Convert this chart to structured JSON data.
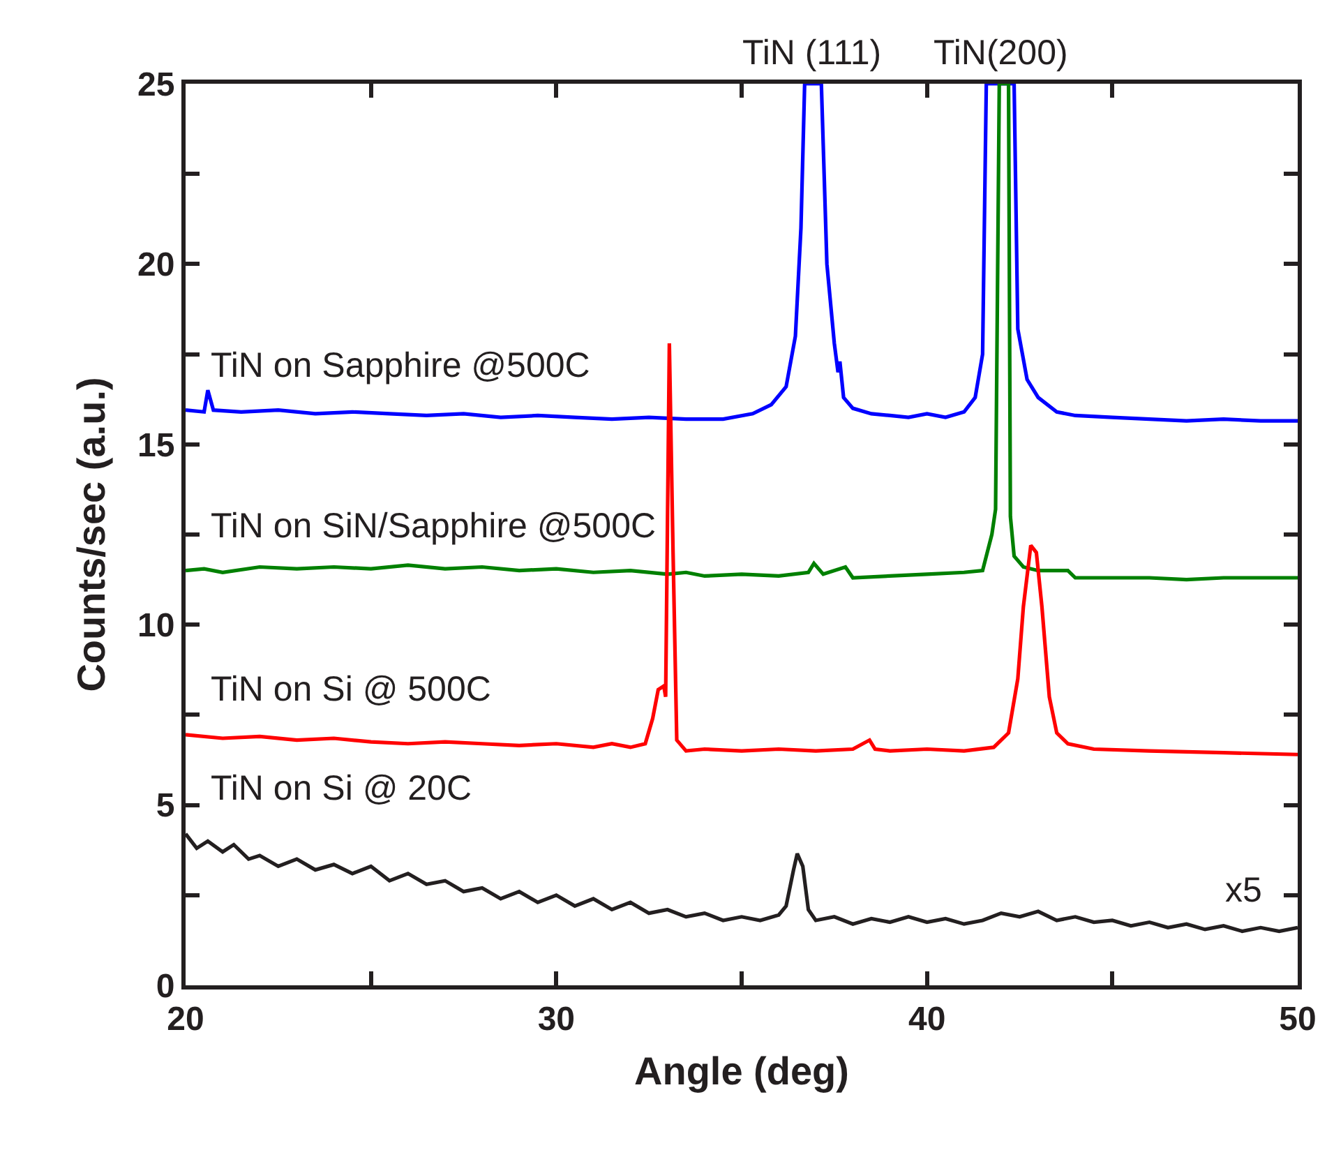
{
  "chart_data": {
    "type": "line",
    "xlabel": "Angle (deg)",
    "ylabel": "Counts/sec (a.u.)",
    "xlim": [
      20,
      50
    ],
    "ylim": [
      0,
      25
    ],
    "xticks": [
      20,
      {
        "value": 25,
        "label": null
      },
      30,
      {
        "value": 35,
        "label": null
      },
      40,
      {
        "value": 45,
        "label": null
      },
      50
    ],
    "yticks": [
      0,
      {
        "value": 2.5,
        "label": null
      },
      5,
      {
        "value": 7.5,
        "label": null
      },
      10,
      {
        "value": 12.5,
        "label": null
      },
      15,
      {
        "value": 17.5,
        "label": null
      },
      20,
      {
        "value": 22.5,
        "label": null
      },
      25
    ],
    "legend": false,
    "marker": "none",
    "line_style": "solid",
    "annotations": [
      {
        "text": "TiN (111)",
        "x": 36.9,
        "y": 25
      },
      {
        "text": "TiN(200)",
        "x": 42.0,
        "y": 25
      },
      "x5"
    ],
    "series": [
      {
        "name": "TiN on Sapphire @500C",
        "color": "#0000ff",
        "x": [
          20.0,
          20.5,
          20.6,
          20.75,
          21.5,
          22.5,
          23.5,
          24.5,
          25.5,
          26.5,
          27.5,
          28.5,
          29.5,
          30.5,
          31.5,
          32.5,
          33.5,
          34.5,
          35.3,
          35.8,
          36.2,
          36.45,
          36.6,
          36.7,
          37.15,
          37.3,
          37.5,
          37.6,
          37.65,
          37.75,
          38.0,
          38.5,
          39.0,
          39.5,
          40.0,
          40.5,
          41.0,
          41.3,
          41.5,
          41.6,
          42.35,
          42.45,
          42.7,
          43.0,
          43.5,
          44,
          45,
          46,
          47,
          48,
          49,
          50
        ],
        "values": [
          15.95,
          15.9,
          16.5,
          15.95,
          15.9,
          15.95,
          15.85,
          15.9,
          15.85,
          15.8,
          15.85,
          15.75,
          15.8,
          15.75,
          15.7,
          15.75,
          15.7,
          15.7,
          15.85,
          16.1,
          16.6,
          18.0,
          21.0,
          25,
          25,
          20.0,
          17.8,
          17.0,
          17.3,
          16.3,
          16.0,
          15.85,
          15.8,
          15.75,
          15.85,
          15.75,
          15.9,
          16.3,
          17.5,
          25,
          25,
          18.2,
          16.8,
          16.3,
          15.9,
          15.8,
          15.75,
          15.7,
          15.65,
          15.7,
          15.65,
          15.65
        ]
      },
      {
        "name": "TiN on SiN/Sapphire @500C",
        "color": "#008000",
        "x": [
          20,
          20.5,
          21,
          22,
          23,
          24,
          25,
          26,
          27,
          28,
          29,
          30,
          31,
          32,
          33,
          33.5,
          34,
          35,
          36,
          36.8,
          36.95,
          37.2,
          37.8,
          38.0,
          39,
          40,
          41,
          41.5,
          41.75,
          41.85,
          41.95,
          42.2,
          42.25,
          42.35,
          42.6,
          43,
          43.8,
          44,
          45,
          46,
          47,
          48,
          49,
          50
        ],
        "values": [
          11.5,
          11.55,
          11.45,
          11.6,
          11.55,
          11.6,
          11.55,
          11.65,
          11.55,
          11.6,
          11.5,
          11.55,
          11.45,
          11.5,
          11.4,
          11.45,
          11.35,
          11.4,
          11.35,
          11.45,
          11.7,
          11.4,
          11.6,
          11.3,
          11.35,
          11.4,
          11.45,
          11.5,
          12.5,
          13.2,
          25,
          25,
          13.0,
          11.9,
          11.6,
          11.5,
          11.5,
          11.3,
          11.3,
          11.3,
          11.25,
          11.3,
          11.3,
          11.3
        ]
      },
      {
        "name": "TiN on Si @ 500C",
        "color": "#ff0000",
        "x": [
          20,
          21,
          22,
          23,
          24,
          25,
          26,
          27,
          28,
          29,
          30,
          31,
          31.5,
          32,
          32.4,
          32.6,
          32.75,
          32.9,
          32.95,
          33.05,
          33.15,
          33.25,
          33.5,
          34,
          35,
          36,
          37,
          38,
          38.45,
          38.6,
          39,
          40,
          41,
          41.8,
          42.2,
          42.45,
          42.6,
          42.8,
          42.95,
          43.1,
          43.3,
          43.5,
          43.8,
          44.5,
          46,
          48,
          50
        ],
        "values": [
          6.95,
          6.85,
          6.9,
          6.8,
          6.85,
          6.75,
          6.7,
          6.75,
          6.7,
          6.65,
          6.7,
          6.6,
          6.7,
          6.6,
          6.7,
          7.4,
          8.2,
          8.3,
          8.0,
          17.8,
          12.0,
          6.8,
          6.5,
          6.55,
          6.5,
          6.55,
          6.5,
          6.55,
          6.8,
          6.55,
          6.5,
          6.55,
          6.5,
          6.6,
          7.0,
          8.5,
          10.5,
          12.2,
          12.0,
          10.5,
          8.0,
          7.0,
          6.7,
          6.55,
          6.5,
          6.45,
          6.4
        ]
      },
      {
        "name": "TiN on Si @ 20C",
        "color": "#231f20",
        "x": [
          20,
          20.3,
          20.6,
          21,
          21.3,
          21.7,
          22,
          22.5,
          23,
          23.5,
          24,
          24.5,
          25,
          25.5,
          26,
          26.5,
          27,
          27.5,
          28,
          28.5,
          29,
          29.5,
          30,
          30.5,
          31,
          31.5,
          32,
          32.5,
          33,
          33.5,
          34,
          34.5,
          35,
          35.5,
          36,
          36.2,
          36.4,
          36.5,
          36.65,
          36.8,
          37,
          37.5,
          38,
          38.5,
          39,
          39.5,
          40,
          40.5,
          41,
          41.5,
          42,
          42.5,
          43,
          43.5,
          44,
          44.5,
          45,
          45.5,
          46,
          46.5,
          47,
          47.5,
          48,
          48.5,
          49,
          49.5,
          50
        ],
        "values": [
          4.2,
          3.8,
          4.0,
          3.7,
          3.9,
          3.5,
          3.6,
          3.3,
          3.5,
          3.2,
          3.35,
          3.1,
          3.3,
          2.9,
          3.1,
          2.8,
          2.9,
          2.6,
          2.7,
          2.4,
          2.6,
          2.3,
          2.5,
          2.2,
          2.4,
          2.1,
          2.3,
          2.0,
          2.1,
          1.9,
          2.0,
          1.8,
          1.9,
          1.8,
          1.95,
          2.2,
          3.2,
          3.65,
          3.3,
          2.1,
          1.8,
          1.9,
          1.7,
          1.85,
          1.75,
          1.9,
          1.75,
          1.85,
          1.7,
          1.8,
          2.0,
          1.9,
          2.05,
          1.8,
          1.9,
          1.75,
          1.8,
          1.65,
          1.75,
          1.6,
          1.7,
          1.55,
          1.65,
          1.5,
          1.6,
          1.5,
          1.6
        ]
      }
    ]
  }
}
